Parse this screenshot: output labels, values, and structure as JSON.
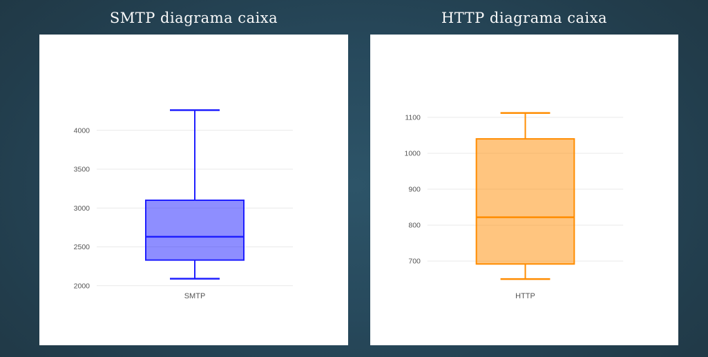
{
  "page": {
    "background_center_color": "#2b5166",
    "background_edge_color": "#1f3541",
    "panel_color": "#ffffff",
    "title_color": "#fafafa",
    "tick_label_color": "#545454",
    "gridline_color": "#e9e9e9"
  },
  "chart_data": [
    {
      "type": "box",
      "title": "SMTP diagrama caixa",
      "categories": [
        "SMTP"
      ],
      "series": [
        {
          "name": "SMTP",
          "min": 2090,
          "q1": 2330,
          "median": 2630,
          "q3": 3100,
          "max": 4260
        }
      ],
      "yticks": [
        2000,
        2500,
        3000,
        3500,
        4000
      ],
      "ylim": [
        1900,
        4700
      ],
      "grid": true,
      "legend": false,
      "colors": {
        "line": "#1e1eff",
        "fill": "rgba(30,30,255,0.5)"
      }
    },
    {
      "type": "box",
      "title": "HTTP diagrama caixa",
      "categories": [
        "HTTP"
      ],
      "series": [
        {
          "name": "HTTP",
          "min": 650,
          "q1": 692,
          "median": 822,
          "q3": 1040,
          "max": 1112
        }
      ],
      "yticks": [
        700,
        800,
        900,
        1000,
        1100
      ],
      "ylim": [
        610,
        1215
      ],
      "grid": true,
      "legend": false,
      "colors": {
        "line": "#ff8c00",
        "fill": "rgba(255,140,0,0.5)"
      }
    }
  ]
}
